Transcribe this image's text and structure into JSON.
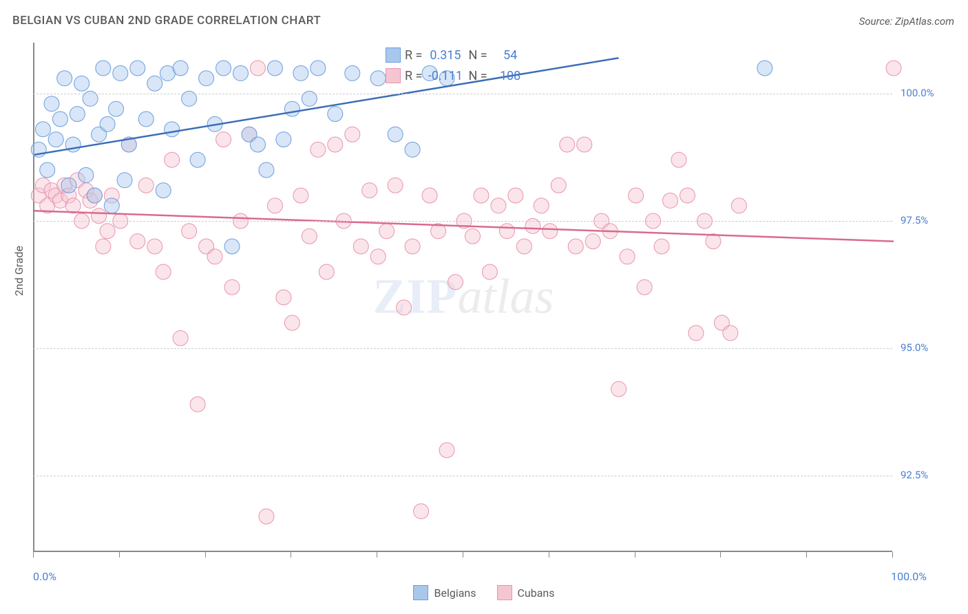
{
  "title": "BELGIAN VS CUBAN 2ND GRADE CORRELATION CHART",
  "source_label": "Source: ZipAtlas.com",
  "y_axis_title": "2nd Grade",
  "watermark": {
    "part1": "ZIP",
    "part2": "atlas"
  },
  "chart": {
    "type": "scatter",
    "xlim": [
      0,
      100
    ],
    "ylim": [
      91.0,
      101.0
    ],
    "y_ticks": [
      92.5,
      95.0,
      97.5,
      100.0
    ],
    "y_tick_labels": [
      "92.5%",
      "95.0%",
      "97.5%",
      "100.0%"
    ],
    "x_ticks": [
      0,
      10,
      20,
      30,
      40,
      50,
      60,
      70,
      80,
      90,
      100
    ],
    "x_start_label": "0.0%",
    "x_end_label": "100.0%",
    "background_color": "#ffffff",
    "grid_color": "#cccccc",
    "marker_radius": 11,
    "marker_opacity": 0.45,
    "line_width": 2.5,
    "series": [
      {
        "name": "Belgians",
        "color_fill": "#a9c7ed",
        "color_stroke": "#6b9ede",
        "line_color": "#3b6db8",
        "R": "0.315",
        "N": "54",
        "trend": {
          "x1": 0,
          "y1": 98.8,
          "x2": 68,
          "y2": 100.7
        },
        "points": [
          [
            0.5,
            98.9
          ],
          [
            1.0,
            99.3
          ],
          [
            1.5,
            98.5
          ],
          [
            2.0,
            99.8
          ],
          [
            2.5,
            99.1
          ],
          [
            3.0,
            99.5
          ],
          [
            3.5,
            100.3
          ],
          [
            4.0,
            98.2
          ],
          [
            4.5,
            99.0
          ],
          [
            5.0,
            99.6
          ],
          [
            5.5,
            100.2
          ],
          [
            6.0,
            98.4
          ],
          [
            6.5,
            99.9
          ],
          [
            7.0,
            98.0
          ],
          [
            7.5,
            99.2
          ],
          [
            8.0,
            100.5
          ],
          [
            8.5,
            99.4
          ],
          [
            9.0,
            97.8
          ],
          [
            9.5,
            99.7
          ],
          [
            10.0,
            100.4
          ],
          [
            10.5,
            98.3
          ],
          [
            11.0,
            99.0
          ],
          [
            12.0,
            100.5
          ],
          [
            13.0,
            99.5
          ],
          [
            14.0,
            100.2
          ],
          [
            15.0,
            98.1
          ],
          [
            15.5,
            100.4
          ],
          [
            16.0,
            99.3
          ],
          [
            17.0,
            100.5
          ],
          [
            18.0,
            99.9
          ],
          [
            19.0,
            98.7
          ],
          [
            20.0,
            100.3
          ],
          [
            21.0,
            99.4
          ],
          [
            22.0,
            100.5
          ],
          [
            23.0,
            97.0
          ],
          [
            24.0,
            100.4
          ],
          [
            25.0,
            99.2
          ],
          [
            26.0,
            99.0
          ],
          [
            27.0,
            98.5
          ],
          [
            28.0,
            100.5
          ],
          [
            29.0,
            99.1
          ],
          [
            30.0,
            99.7
          ],
          [
            31.0,
            100.4
          ],
          [
            32.0,
            99.9
          ],
          [
            33.0,
            100.5
          ],
          [
            35.0,
            99.6
          ],
          [
            37.0,
            100.4
          ],
          [
            40.0,
            100.3
          ],
          [
            42.0,
            99.2
          ],
          [
            44.0,
            98.9
          ],
          [
            46.0,
            100.4
          ],
          [
            48.0,
            100.3
          ],
          [
            85.0,
            100.5
          ]
        ]
      },
      {
        "name": "Cubans",
        "color_fill": "#f5c5d2",
        "color_stroke": "#e993ab",
        "line_color": "#d96a8f",
        "R": "-0.111",
        "N": "108",
        "trend": {
          "x1": 0,
          "y1": 97.7,
          "x2": 100,
          "y2": 97.1
        },
        "points": [
          [
            0.5,
            98.0
          ],
          [
            1.0,
            98.2
          ],
          [
            1.5,
            97.8
          ],
          [
            2.0,
            98.1
          ],
          [
            2.5,
            98.0
          ],
          [
            3.0,
            97.9
          ],
          [
            3.5,
            98.2
          ],
          [
            4.0,
            98.0
          ],
          [
            4.5,
            97.8
          ],
          [
            5.0,
            98.3
          ],
          [
            5.5,
            97.5
          ],
          [
            6.0,
            98.1
          ],
          [
            6.5,
            97.9
          ],
          [
            7.0,
            98.0
          ],
          [
            7.5,
            97.6
          ],
          [
            8.0,
            97.0
          ],
          [
            8.5,
            97.3
          ],
          [
            9.0,
            98.0
          ],
          [
            10.0,
            97.5
          ],
          [
            11.0,
            99.0
          ],
          [
            12.0,
            97.1
          ],
          [
            13.0,
            98.2
          ],
          [
            14.0,
            97.0
          ],
          [
            15.0,
            96.5
          ],
          [
            16.0,
            98.7
          ],
          [
            17.0,
            95.2
          ],
          [
            18.0,
            97.3
          ],
          [
            19.0,
            93.9
          ],
          [
            20.0,
            97.0
          ],
          [
            21.0,
            96.8
          ],
          [
            22.0,
            99.1
          ],
          [
            23.0,
            96.2
          ],
          [
            24.0,
            97.5
          ],
          [
            25.0,
            99.2
          ],
          [
            26.0,
            100.5
          ],
          [
            27.0,
            91.7
          ],
          [
            28.0,
            97.8
          ],
          [
            29.0,
            96.0
          ],
          [
            30.0,
            95.5
          ],
          [
            31.0,
            98.0
          ],
          [
            32.0,
            97.2
          ],
          [
            33.0,
            98.9
          ],
          [
            34.0,
            96.5
          ],
          [
            35.0,
            99.0
          ],
          [
            36.0,
            97.5
          ],
          [
            37.0,
            99.2
          ],
          [
            38.0,
            97.0
          ],
          [
            39.0,
            98.1
          ],
          [
            40.0,
            96.8
          ],
          [
            41.0,
            97.3
          ],
          [
            42.0,
            98.2
          ],
          [
            43.0,
            95.8
          ],
          [
            44.0,
            97.0
          ],
          [
            45.0,
            91.8
          ],
          [
            46.0,
            98.0
          ],
          [
            47.0,
            97.3
          ],
          [
            48.0,
            93.0
          ],
          [
            49.0,
            96.3
          ],
          [
            50.0,
            97.5
          ],
          [
            51.0,
            97.2
          ],
          [
            52.0,
            98.0
          ],
          [
            53.0,
            96.5
          ],
          [
            54.0,
            97.8
          ],
          [
            55.0,
            97.3
          ],
          [
            56.0,
            98.0
          ],
          [
            57.0,
            97.0
          ],
          [
            58.0,
            97.4
          ],
          [
            59.0,
            97.8
          ],
          [
            60.0,
            97.3
          ],
          [
            61.0,
            98.2
          ],
          [
            62.0,
            99.0
          ],
          [
            63.0,
            97.0
          ],
          [
            64.0,
            99.0
          ],
          [
            65.0,
            97.1
          ],
          [
            66.0,
            97.5
          ],
          [
            67.0,
            97.3
          ],
          [
            68.0,
            94.2
          ],
          [
            69.0,
            96.8
          ],
          [
            70.0,
            98.0
          ],
          [
            71.0,
            96.2
          ],
          [
            72.0,
            97.5
          ],
          [
            73.0,
            97.0
          ],
          [
            74.0,
            97.9
          ],
          [
            75.0,
            98.7
          ],
          [
            76.0,
            98.0
          ],
          [
            77.0,
            95.3
          ],
          [
            78.0,
            97.5
          ],
          [
            79.0,
            97.1
          ],
          [
            80.0,
            95.5
          ],
          [
            81.0,
            95.3
          ],
          [
            82.0,
            97.8
          ],
          [
            100.0,
            100.5
          ]
        ]
      }
    ]
  },
  "legend": {
    "series1_label": "Belgians",
    "series2_label": "Cubans"
  },
  "stats_labels": {
    "R": "R =",
    "N": "N ="
  }
}
